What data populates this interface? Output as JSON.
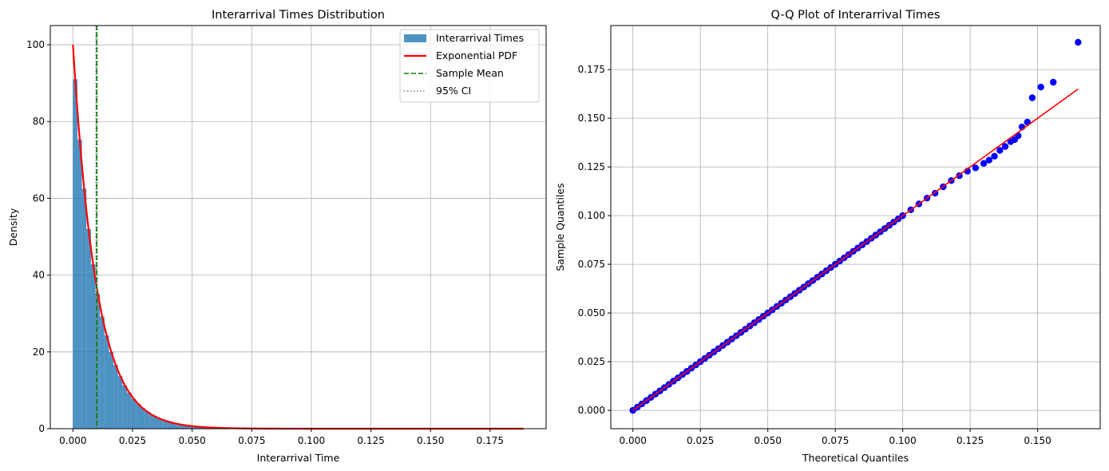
{
  "chart_data": [
    {
      "type": "bar",
      "title": "Interarrival Times Distribution",
      "xlabel": "Interarrival Time",
      "ylabel": "Density",
      "xlim": [
        -0.0095,
        0.1985
      ],
      "ylim": [
        0,
        105
      ],
      "xticks": [
        0.0,
        0.025,
        0.05,
        0.075,
        0.1,
        0.125,
        0.15,
        0.175
      ],
      "xtick_labels": [
        "0.000",
        "0.025",
        "0.050",
        "0.075",
        "0.100",
        "0.125",
        "0.150",
        "0.175"
      ],
      "yticks": [
        0,
        20,
        40,
        60,
        80,
        100
      ],
      "ytick_labels": [
        "0",
        "20",
        "40",
        "60",
        "80",
        "100"
      ],
      "grid": true,
      "legend_position": "top-right",
      "histogram": {
        "name": "Interarrival Times",
        "color": "#1f77b4",
        "alpha": 0.8,
        "bin_start": 0.0,
        "bin_width": 0.00189,
        "densities": [
          91.0,
          75.3,
          62.5,
          52.0,
          42.8,
          35.1,
          29.2,
          24.3,
          20.0,
          16.6,
          13.7,
          11.3,
          9.4,
          7.8,
          6.5,
          5.4,
          4.5,
          3.7,
          3.1,
          2.5,
          2.1,
          1.7,
          1.4,
          1.2,
          1.0,
          0.8,
          0.65,
          0.55,
          0.45,
          0.37,
          0.3,
          0.25,
          0.2,
          0.17,
          0.14,
          0.12,
          0.1,
          0.08,
          0.07,
          0.06,
          0.05,
          0.04,
          0.03,
          0.03,
          0.02,
          0.02,
          0.02,
          0.01,
          0.01,
          0.01
        ]
      },
      "pdf": {
        "name": "Exponential PDF",
        "color": "#ff0000",
        "rate": 100,
        "x_max": 0.189
      },
      "sample_mean": {
        "name": "Sample Mean",
        "color": "#008000",
        "value": 0.00995
      },
      "ci": {
        "name": "95% CI",
        "color": "#808080",
        "low": 0.0097,
        "high": 0.0102
      },
      "legend": [
        "Interarrival Times",
        "Exponential PDF",
        "Sample Mean",
        "95% CI"
      ]
    },
    {
      "type": "scatter",
      "title": "Q-Q Plot of Interarrival Times",
      "xlabel": "Theoretical Quantiles",
      "ylabel": "Sample Quantiles",
      "xlim": [
        -0.0082,
        0.1732
      ],
      "ylim": [
        -0.0094,
        0.1976
      ],
      "xticks": [
        0.0,
        0.025,
        0.05,
        0.075,
        0.1,
        0.125,
        0.15
      ],
      "xtick_labels": [
        "0.000",
        "0.025",
        "0.050",
        "0.075",
        "0.100",
        "0.125",
        "0.150"
      ],
      "yticks": [
        0.0,
        0.025,
        0.05,
        0.075,
        0.1,
        0.125,
        0.15,
        0.175
      ],
      "ytick_labels": [
        "0.000",
        "0.025",
        "0.050",
        "0.075",
        "0.100",
        "0.125",
        "0.150",
        "0.175"
      ],
      "grid": true,
      "points_color": "#0000ff",
      "line_color": "#ff0000",
      "reference_line": {
        "x": [
          0.0,
          0.165
        ],
        "y": [
          0.0,
          0.165
        ]
      },
      "points": [
        [
          0.0,
          0.0
        ],
        [
          0.005,
          0.005
        ],
        [
          0.01,
          0.01
        ],
        [
          0.015,
          0.015
        ],
        [
          0.02,
          0.02
        ],
        [
          0.025,
          0.025
        ],
        [
          0.03,
          0.03
        ],
        [
          0.035,
          0.035
        ],
        [
          0.04,
          0.04
        ],
        [
          0.045,
          0.045
        ],
        [
          0.05,
          0.05
        ],
        [
          0.055,
          0.055
        ],
        [
          0.06,
          0.06
        ],
        [
          0.065,
          0.065
        ],
        [
          0.07,
          0.07
        ],
        [
          0.075,
          0.075
        ],
        [
          0.08,
          0.08
        ],
        [
          0.085,
          0.085
        ],
        [
          0.09,
          0.09
        ],
        [
          0.095,
          0.095
        ],
        [
          0.1,
          0.1
        ],
        [
          0.103,
          0.103
        ],
        [
          0.106,
          0.106
        ],
        [
          0.109,
          0.109
        ],
        [
          0.112,
          0.1115
        ],
        [
          0.115,
          0.1148
        ],
        [
          0.118,
          0.118
        ],
        [
          0.121,
          0.1205
        ],
        [
          0.124,
          0.1228
        ],
        [
          0.127,
          0.1245
        ],
        [
          0.13,
          0.1268
        ],
        [
          0.132,
          0.1285
        ],
        [
          0.134,
          0.1305
        ],
        [
          0.136,
          0.1335
        ],
        [
          0.138,
          0.1355
        ],
        [
          0.14,
          0.138
        ],
        [
          0.1415,
          0.139
        ],
        [
          0.1428,
          0.141
        ],
        [
          0.1442,
          0.1455
        ],
        [
          0.1462,
          0.148
        ],
        [
          0.148,
          0.1605
        ],
        [
          0.1512,
          0.166
        ],
        [
          0.1558,
          0.1685
        ],
        [
          0.165,
          0.189
        ]
      ]
    }
  ]
}
